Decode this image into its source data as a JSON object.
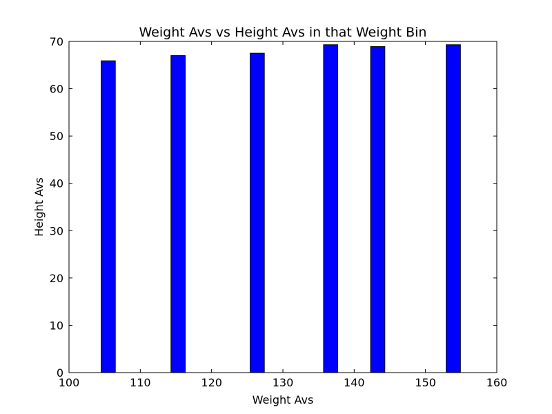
{
  "chart_data": {
    "type": "bar",
    "title": "Weight Avs vs Height Avs in that Weight Bin",
    "xlabel": "Weight Avs",
    "ylabel": "Height Avs",
    "xlim": [
      100,
      160
    ],
    "ylim": [
      0,
      70
    ],
    "xticks": [
      "100",
      "110",
      "120",
      "130",
      "140",
      "150",
      "160"
    ],
    "yticks": [
      "0",
      "10",
      "20",
      "30",
      "40",
      "50",
      "60",
      "70"
    ],
    "bar_width": 2,
    "grid": false,
    "bar_color": "#0000ff",
    "bar_edge_color": "#000000",
    "bars": [
      {
        "x": 104.5,
        "value": 65.9
      },
      {
        "x": 114.3,
        "value": 67.0
      },
      {
        "x": 125.4,
        "value": 67.5
      },
      {
        "x": 135.7,
        "value": 69.3
      },
      {
        "x": 142.3,
        "value": 68.9
      },
      {
        "x": 152.9,
        "value": 69.3
      }
    ]
  }
}
